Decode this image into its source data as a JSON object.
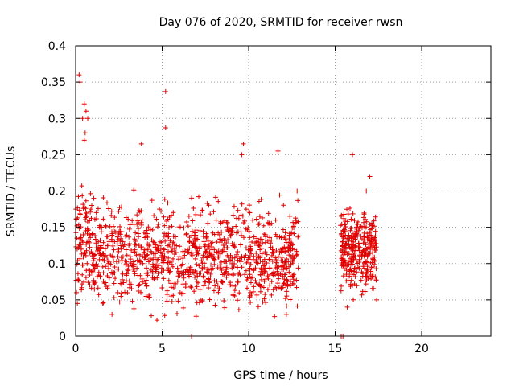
{
  "chart_data": {
    "type": "scatter",
    "title": "Day 076 of 2020, SRMTID for receiver rwsn",
    "xlabel": "GPS time / hours",
    "ylabel": "SRMTID / TECUs",
    "xlim": [
      0,
      24
    ],
    "ylim": [
      0,
      0.4
    ],
    "grid": true,
    "x_ticks": [
      0,
      5,
      10,
      15,
      20
    ],
    "x_tick_labels": [
      "0",
      "5",
      "10",
      "15",
      "20"
    ],
    "y_ticks": [
      0,
      0.05,
      0.1,
      0.15,
      0.2,
      0.25,
      0.3,
      0.35,
      0.4
    ],
    "y_tick_labels": [
      "0",
      "0.05",
      "0.1",
      "0.15",
      "0.2",
      "0.25",
      "0.3",
      "0.35",
      "0.4"
    ],
    "marker": "+",
    "marker_color": "#e00000",
    "series": [
      {
        "name": "rwsn",
        "segments": [
          {
            "x_range": [
              0.0,
              12.9
            ],
            "y_center": 0.11,
            "y_spread": 0.045,
            "count": 1150
          },
          {
            "x_range": [
              15.3,
              17.4
            ],
            "y_center": 0.12,
            "y_spread": 0.035,
            "count": 300
          }
        ],
        "highlight_points": [
          {
            "x": 0.2,
            "y": 0.36
          },
          {
            "x": 0.25,
            "y": 0.35
          },
          {
            "x": 0.5,
            "y": 0.32
          },
          {
            "x": 0.6,
            "y": 0.31
          },
          {
            "x": 0.4,
            "y": 0.3
          },
          {
            "x": 0.7,
            "y": 0.3
          },
          {
            "x": 0.55,
            "y": 0.28
          },
          {
            "x": 0.5,
            "y": 0.27
          },
          {
            "x": 5.2,
            "y": 0.337
          },
          {
            "x": 5.2,
            "y": 0.287
          },
          {
            "x": 9.7,
            "y": 0.265
          },
          {
            "x": 9.6,
            "y": 0.25
          },
          {
            "x": 11.7,
            "y": 0.255
          },
          {
            "x": 3.8,
            "y": 0.265
          },
          {
            "x": 16.0,
            "y": 0.25
          },
          {
            "x": 17.0,
            "y": 0.22
          },
          {
            "x": 16.8,
            "y": 0.2
          },
          {
            "x": 12.8,
            "y": 0.2
          },
          {
            "x": 4.7,
            "y": 0.022
          },
          {
            "x": 6.7,
            "y": 0.0
          },
          {
            "x": 15.35,
            "y": 0.0
          },
          {
            "x": 15.45,
            "y": 0.0
          },
          {
            "x": 11.5,
            "y": 0.027
          },
          {
            "x": 2.1,
            "y": 0.03
          },
          {
            "x": 0.05,
            "y": 0.06
          },
          {
            "x": 0.1,
            "y": 0.045
          },
          {
            "x": 17.4,
            "y": 0.05
          },
          {
            "x": 15.7,
            "y": 0.04
          }
        ]
      }
    ]
  }
}
